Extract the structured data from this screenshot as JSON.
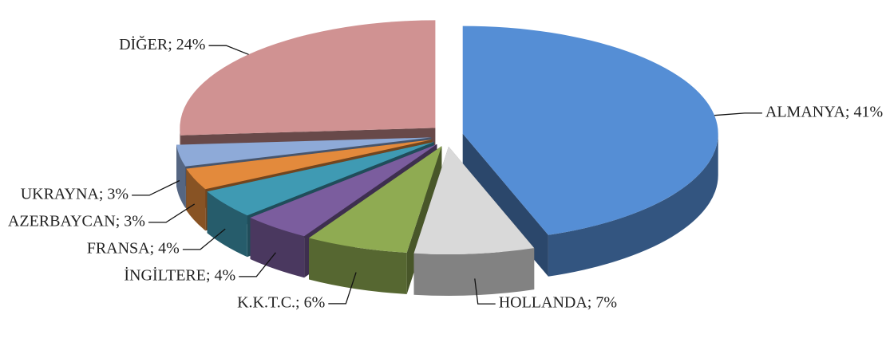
{
  "chart_data": {
    "type": "pie3d",
    "values": [
      41,
      7,
      6,
      4,
      4,
      3,
      3,
      24
    ],
    "value_labels": [
      "ALMANYA; 41%",
      "HOLLANDA; 7%",
      "K.K.T.C.; 6%",
      "İNGİLTERE; 4%",
      "FRANSA; 4%",
      "AZERBAYCAN; 3%",
      "UKRAYNA; 3%",
      "DİĞER; 24%"
    ],
    "colors": [
      "#558ed5",
      "#d9d9d9",
      "#8fab52",
      "#7b5d9e",
      "#3f9ab3",
      "#e38a3c",
      "#8eaad8",
      "#d09292"
    ]
  }
}
